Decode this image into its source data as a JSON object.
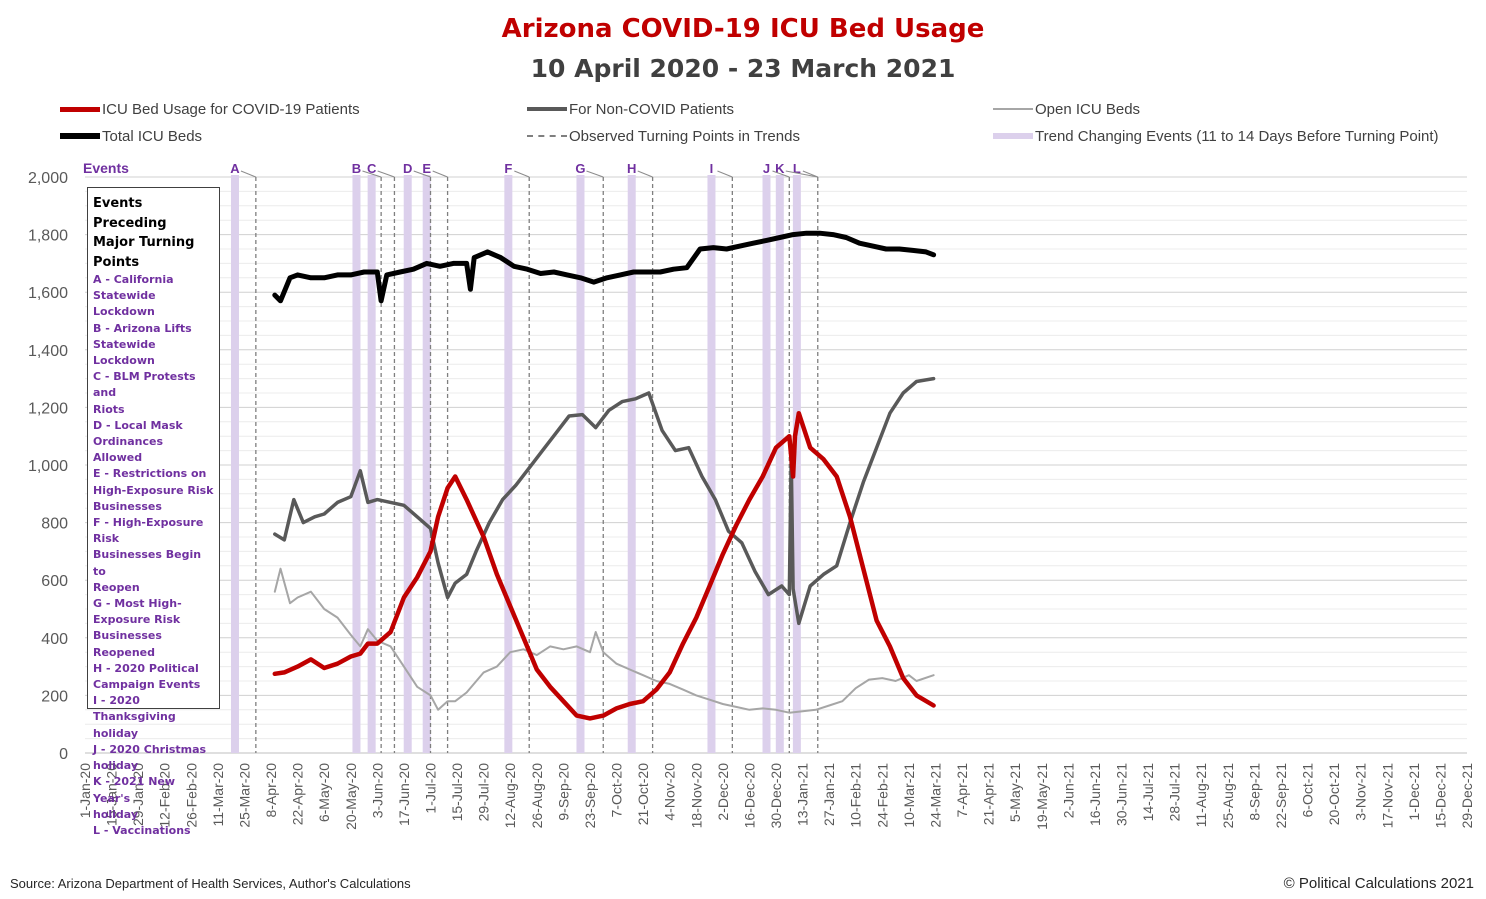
{
  "title": "Arizona COVID-19 ICU Bed Usage",
  "subtitle": "10 April 2020 - 23 March 2021",
  "legend": [
    {
      "label": "ICU Bed Usage for COVID-19 Patients",
      "color": "#c00000",
      "style": "solid-thick"
    },
    {
      "label": "For Non-COVID Patients",
      "color": "#595959",
      "style": "solid"
    },
    {
      "label": "Open ICU Beds",
      "color": "#a6a6a6",
      "style": "solid-thin"
    },
    {
      "label": "Total ICU Beds",
      "color": "#000000",
      "style": "solid-thick"
    },
    {
      "label": "Observed Turning Points in Trends",
      "color": "#7f7f7f",
      "style": "dashed"
    },
    {
      "label": "Trend Changing Events (11 to 14 Days Before Turning Point)",
      "color": "#dcd0ec",
      "style": "band"
    }
  ],
  "events_box": {
    "title_lines": [
      "Events Preceding",
      "Major Turning",
      "Points"
    ],
    "lines": [
      "A - California",
      "Statewide Lockdown",
      "B - Arizona Lifts",
      "Statewide Lockdown",
      "C - BLM Protests and",
      "Riots",
      "D - Local Mask",
      "Ordinances Allowed",
      "E - Restrictions on",
      "High-Exposure Risk",
      "Businesses",
      "F - High-Exposure Risk",
      "Businesses Begin to",
      "Reopen",
      "G - Most High-",
      "Exposure Risk",
      "Businesses Reopened",
      "H - 2020 Political",
      "Campaign Events",
      "I - 2020 Thanksgiving",
      "holiday",
      "J - 2020 Christmas",
      "holiday",
      "K - 2021 New Year's",
      "holiday",
      "L - Vaccinations"
    ]
  },
  "source": "Source: Arizona Department of Health Services, Author's Calculations",
  "copyright": "© Political Calculations 2021",
  "colors": {
    "covid": "#c00000",
    "noncovid": "#595959",
    "open": "#a6a6a6",
    "total": "#000000",
    "event_band": "#dcd0ec",
    "event_label": "#7030a0",
    "turning_line": "#7f7f7f",
    "grid": "#d9d9d9"
  },
  "chart_data": {
    "type": "line",
    "title": "Arizona COVID-19 ICU Bed Usage",
    "subtitle": "10 April 2020 - 23 March 2021",
    "xlabel": "",
    "ylabel": "",
    "x_range": [
      "2020-01-01",
      "2021-12-29"
    ],
    "ylim": [
      0,
      2000
    ],
    "y_ticks": [
      0,
      200,
      400,
      600,
      800,
      1000,
      1200,
      1400,
      1600,
      1800,
      2000
    ],
    "x_tick_labels": [
      "1-Jan-20",
      "15-Jan-20",
      "29-Jan-20",
      "12-Feb-20",
      "26-Feb-20",
      "11-Mar-20",
      "25-Mar-20",
      "8-Apr-20",
      "22-Apr-20",
      "6-May-20",
      "20-May-20",
      "3-Jun-20",
      "17-Jun-20",
      "1-Jul-20",
      "15-Jul-20",
      "29-Jul-20",
      "12-Aug-20",
      "26-Aug-20",
      "9-Sep-20",
      "23-Sep-20",
      "7-Oct-20",
      "21-Oct-20",
      "4-Nov-20",
      "18-Nov-20",
      "2-Dec-20",
      "16-Dec-20",
      "30-Dec-20",
      "13-Jan-21",
      "27-Jan-21",
      "10-Feb-21",
      "24-Feb-21",
      "10-Mar-21",
      "24-Mar-21",
      "7-Apr-21",
      "21-Apr-21",
      "5-May-21",
      "19-May-21",
      "2-Jun-21",
      "16-Jun-21",
      "30-Jun-21",
      "14-Jul-21",
      "28-Jul-21",
      "11-Aug-21",
      "25-Aug-21",
      "8-Sep-21",
      "22-Sep-21",
      "6-Oct-21",
      "20-Oct-21",
      "3-Nov-21",
      "17-Nov-21",
      "1-Dec-21",
      "15-Dec-21",
      "29-Dec-21"
    ],
    "grid": true,
    "legend_position": "top",
    "y_axis_label_top": "Events",
    "series": [
      {
        "name": "ICU Bed Usage for COVID-19 Patients",
        "key": "covid",
        "points": [
          [
            "2020-04-10",
            275
          ],
          [
            "2020-04-15",
            280
          ],
          [
            "2020-04-22",
            300
          ],
          [
            "2020-04-29",
            325
          ],
          [
            "2020-05-06",
            295
          ],
          [
            "2020-05-13",
            310
          ],
          [
            "2020-05-20",
            335
          ],
          [
            "2020-05-25",
            345
          ],
          [
            "2020-05-29",
            380
          ],
          [
            "2020-06-03",
            380
          ],
          [
            "2020-06-10",
            420
          ],
          [
            "2020-06-17",
            540
          ],
          [
            "2020-06-24",
            610
          ],
          [
            "2020-07-01",
            700
          ],
          [
            "2020-07-05",
            820
          ],
          [
            "2020-07-10",
            920
          ],
          [
            "2020-07-14",
            960
          ],
          [
            "2020-07-20",
            880
          ],
          [
            "2020-07-29",
            750
          ],
          [
            "2020-08-05",
            620
          ],
          [
            "2020-08-12",
            510
          ],
          [
            "2020-08-19",
            400
          ],
          [
            "2020-08-26",
            290
          ],
          [
            "2020-09-02",
            230
          ],
          [
            "2020-09-09",
            180
          ],
          [
            "2020-09-16",
            130
          ],
          [
            "2020-09-23",
            120
          ],
          [
            "2020-09-30",
            130
          ],
          [
            "2020-10-07",
            155
          ],
          [
            "2020-10-14",
            170
          ],
          [
            "2020-10-21",
            180
          ],
          [
            "2020-10-28",
            220
          ],
          [
            "2020-11-04",
            280
          ],
          [
            "2020-11-11",
            380
          ],
          [
            "2020-11-18",
            470
          ],
          [
            "2020-11-25",
            580
          ],
          [
            "2020-12-02",
            690
          ],
          [
            "2020-12-09",
            790
          ],
          [
            "2020-12-16",
            880
          ],
          [
            "2020-12-23",
            960
          ],
          [
            "2020-12-30",
            1060
          ],
          [
            "2021-01-06",
            1100
          ],
          [
            "2021-01-08",
            960
          ],
          [
            "2021-01-09",
            1100
          ],
          [
            "2021-01-11",
            1180
          ],
          [
            "2021-01-17",
            1060
          ],
          [
            "2021-01-24",
            1020
          ],
          [
            "2021-01-31",
            960
          ],
          [
            "2021-02-07",
            820
          ],
          [
            "2021-02-14",
            640
          ],
          [
            "2021-02-21",
            460
          ],
          [
            "2021-02-28",
            370
          ],
          [
            "2021-03-07",
            260
          ],
          [
            "2021-03-14",
            200
          ],
          [
            "2021-03-23",
            165
          ]
        ]
      },
      {
        "name": "For Non-COVID Patients",
        "key": "noncovid",
        "points": [
          [
            "2020-04-10",
            760
          ],
          [
            "2020-04-15",
            740
          ],
          [
            "2020-04-20",
            880
          ],
          [
            "2020-04-25",
            800
          ],
          [
            "2020-05-01",
            820
          ],
          [
            "2020-05-06",
            830
          ],
          [
            "2020-05-13",
            870
          ],
          [
            "2020-05-20",
            890
          ],
          [
            "2020-05-25",
            980
          ],
          [
            "2020-05-29",
            870
          ],
          [
            "2020-06-03",
            880
          ],
          [
            "2020-06-10",
            870
          ],
          [
            "2020-06-17",
            860
          ],
          [
            "2020-06-24",
            820
          ],
          [
            "2020-07-01",
            780
          ],
          [
            "2020-07-05",
            660
          ],
          [
            "2020-07-10",
            540
          ],
          [
            "2020-07-14",
            590
          ],
          [
            "2020-07-20",
            620
          ],
          [
            "2020-07-25",
            700
          ],
          [
            "2020-08-01",
            800
          ],
          [
            "2020-08-08",
            880
          ],
          [
            "2020-08-15",
            930
          ],
          [
            "2020-08-22",
            990
          ],
          [
            "2020-08-29",
            1050
          ],
          [
            "2020-09-05",
            1110
          ],
          [
            "2020-09-12",
            1170
          ],
          [
            "2020-09-19",
            1175
          ],
          [
            "2020-09-26",
            1130
          ],
          [
            "2020-10-03",
            1190
          ],
          [
            "2020-10-10",
            1220
          ],
          [
            "2020-10-17",
            1230
          ],
          [
            "2020-10-24",
            1250
          ],
          [
            "2020-10-31",
            1120
          ],
          [
            "2020-11-07",
            1050
          ],
          [
            "2020-11-14",
            1060
          ],
          [
            "2020-11-21",
            960
          ],
          [
            "2020-11-28",
            880
          ],
          [
            "2020-12-05",
            770
          ],
          [
            "2020-12-12",
            730
          ],
          [
            "2020-12-19",
            630
          ],
          [
            "2020-12-26",
            550
          ],
          [
            "2021-01-02",
            580
          ],
          [
            "2021-01-06",
            550
          ],
          [
            "2021-01-07",
            1030
          ],
          [
            "2021-01-08",
            570
          ],
          [
            "2021-01-11",
            450
          ],
          [
            "2021-01-17",
            580
          ],
          [
            "2021-01-24",
            620
          ],
          [
            "2021-01-31",
            650
          ],
          [
            "2021-02-07",
            800
          ],
          [
            "2021-02-14",
            940
          ],
          [
            "2021-02-21",
            1060
          ],
          [
            "2021-02-28",
            1180
          ],
          [
            "2021-03-07",
            1250
          ],
          [
            "2021-03-14",
            1290
          ],
          [
            "2021-03-23",
            1300
          ]
        ]
      },
      {
        "name": "Open ICU Beds",
        "key": "open",
        "points": [
          [
            "2020-04-10",
            560
          ],
          [
            "2020-04-13",
            640
          ],
          [
            "2020-04-18",
            520
          ],
          [
            "2020-04-22",
            540
          ],
          [
            "2020-04-29",
            560
          ],
          [
            "2020-05-06",
            500
          ],
          [
            "2020-05-13",
            470
          ],
          [
            "2020-05-20",
            410
          ],
          [
            "2020-05-25",
            370
          ],
          [
            "2020-05-29",
            430
          ],
          [
            "2020-06-03",
            390
          ],
          [
            "2020-06-10",
            370
          ],
          [
            "2020-06-17",
            300
          ],
          [
            "2020-06-24",
            230
          ],
          [
            "2020-07-01",
            200
          ],
          [
            "2020-07-05",
            150
          ],
          [
            "2020-07-10",
            180
          ],
          [
            "2020-07-14",
            180
          ],
          [
            "2020-07-20",
            210
          ],
          [
            "2020-07-29",
            280
          ],
          [
            "2020-08-05",
            300
          ],
          [
            "2020-08-12",
            350
          ],
          [
            "2020-08-19",
            360
          ],
          [
            "2020-08-26",
            340
          ],
          [
            "2020-09-02",
            370
          ],
          [
            "2020-09-09",
            360
          ],
          [
            "2020-09-16",
            370
          ],
          [
            "2020-09-23",
            350
          ],
          [
            "2020-09-26",
            420
          ],
          [
            "2020-09-30",
            350
          ],
          [
            "2020-10-07",
            310
          ],
          [
            "2020-10-14",
            290
          ],
          [
            "2020-10-21",
            270
          ],
          [
            "2020-10-28",
            250
          ],
          [
            "2020-11-04",
            240
          ],
          [
            "2020-11-11",
            220
          ],
          [
            "2020-11-18",
            200
          ],
          [
            "2020-11-25",
            185
          ],
          [
            "2020-12-02",
            170
          ],
          [
            "2020-12-09",
            160
          ],
          [
            "2020-12-16",
            150
          ],
          [
            "2020-12-23",
            155
          ],
          [
            "2020-12-30",
            150
          ],
          [
            "2021-01-06",
            140
          ],
          [
            "2021-01-13",
            145
          ],
          [
            "2021-01-20",
            150
          ],
          [
            "2021-01-27",
            165
          ],
          [
            "2021-02-03",
            180
          ],
          [
            "2021-02-10",
            225
          ],
          [
            "2021-02-17",
            255
          ],
          [
            "2021-02-24",
            260
          ],
          [
            "2021-03-03",
            250
          ],
          [
            "2021-03-10",
            270
          ],
          [
            "2021-03-14",
            250
          ],
          [
            "2021-03-23",
            270
          ]
        ]
      },
      {
        "name": "Total ICU Beds",
        "key": "total",
        "points": [
          [
            "2020-04-10",
            1590
          ],
          [
            "2020-04-13",
            1570
          ],
          [
            "2020-04-18",
            1650
          ],
          [
            "2020-04-22",
            1660
          ],
          [
            "2020-04-29",
            1650
          ],
          [
            "2020-05-06",
            1650
          ],
          [
            "2020-05-13",
            1660
          ],
          [
            "2020-05-20",
            1660
          ],
          [
            "2020-05-27",
            1670
          ],
          [
            "2020-06-03",
            1670
          ],
          [
            "2020-06-05",
            1570
          ],
          [
            "2020-06-08",
            1660
          ],
          [
            "2020-06-15",
            1670
          ],
          [
            "2020-06-22",
            1680
          ],
          [
            "2020-06-29",
            1700
          ],
          [
            "2020-07-06",
            1690
          ],
          [
            "2020-07-13",
            1700
          ],
          [
            "2020-07-20",
            1700
          ],
          [
            "2020-07-22",
            1610
          ],
          [
            "2020-07-24",
            1720
          ],
          [
            "2020-07-31",
            1740
          ],
          [
            "2020-08-07",
            1720
          ],
          [
            "2020-08-14",
            1690
          ],
          [
            "2020-08-21",
            1680
          ],
          [
            "2020-08-28",
            1665
          ],
          [
            "2020-09-04",
            1670
          ],
          [
            "2020-09-11",
            1660
          ],
          [
            "2020-09-18",
            1650
          ],
          [
            "2020-09-25",
            1635
          ],
          [
            "2020-10-02",
            1650
          ],
          [
            "2020-10-09",
            1660
          ],
          [
            "2020-10-16",
            1670
          ],
          [
            "2020-10-23",
            1670
          ],
          [
            "2020-10-30",
            1670
          ],
          [
            "2020-11-06",
            1680
          ],
          [
            "2020-11-13",
            1685
          ],
          [
            "2020-11-20",
            1750
          ],
          [
            "2020-11-27",
            1755
          ],
          [
            "2020-12-04",
            1750
          ],
          [
            "2020-12-11",
            1760
          ],
          [
            "2020-12-18",
            1770
          ],
          [
            "2020-12-25",
            1780
          ],
          [
            "2021-01-01",
            1790
          ],
          [
            "2021-01-08",
            1800
          ],
          [
            "2021-01-15",
            1805
          ],
          [
            "2021-01-22",
            1805
          ],
          [
            "2021-01-29",
            1800
          ],
          [
            "2021-02-05",
            1790
          ],
          [
            "2021-02-12",
            1770
          ],
          [
            "2021-02-19",
            1760
          ],
          [
            "2021-02-26",
            1750
          ],
          [
            "2021-03-05",
            1750
          ],
          [
            "2021-03-12",
            1745
          ],
          [
            "2021-03-19",
            1740
          ],
          [
            "2021-03-23",
            1730
          ]
        ]
      }
    ],
    "events": [
      {
        "label": "A",
        "date": "2020-03-20"
      },
      {
        "label": "B",
        "date": "2020-05-23"
      },
      {
        "label": "C",
        "date": "2020-05-31"
      },
      {
        "label": "D",
        "date": "2020-06-19"
      },
      {
        "label": "E",
        "date": "2020-06-29"
      },
      {
        "label": "F",
        "date": "2020-08-11"
      },
      {
        "label": "G",
        "date": "2020-09-18"
      },
      {
        "label": "H",
        "date": "2020-10-15"
      },
      {
        "label": "I",
        "date": "2020-11-26"
      },
      {
        "label": "J",
        "date": "2020-12-25"
      },
      {
        "label": "K",
        "date": "2021-01-01"
      },
      {
        "label": "L",
        "date": "2021-01-10"
      }
    ],
    "turning_points": [
      "2020-03-31",
      "2020-06-05",
      "2020-06-12",
      "2020-07-01",
      "2020-07-10",
      "2020-08-22",
      "2020-09-30",
      "2020-10-26",
      "2020-12-07",
      "2021-01-06",
      "2021-01-21"
    ]
  }
}
